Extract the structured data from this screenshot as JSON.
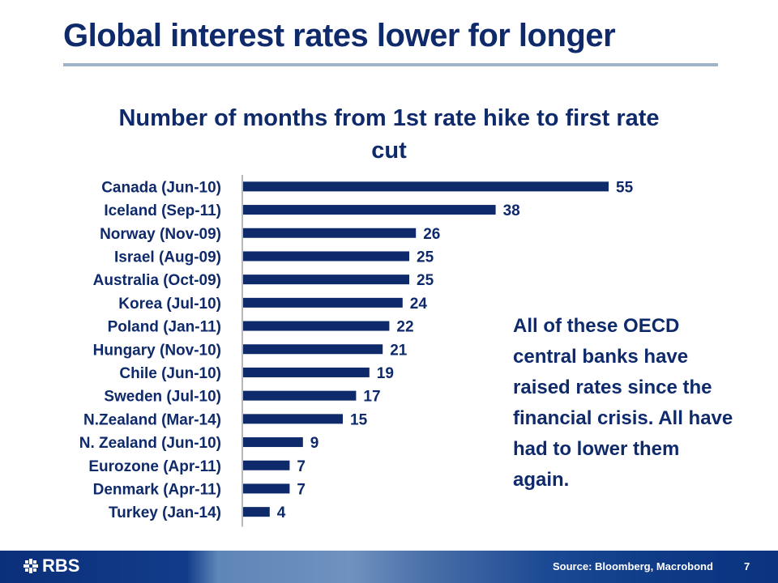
{
  "slide": {
    "title": "Global interest rates lower for longer",
    "annotation": "All of these OECD central banks have raised rates since the financial crisis. All have had to lower them again.",
    "footer": {
      "logo_text": "RBS",
      "source": "Source: Bloomberg, Macrobond",
      "page_number": "7"
    }
  },
  "colors": {
    "bar": "#0f2a6b",
    "text": "#0f2a6b",
    "rule": "#9fb3c8"
  },
  "chart_data": {
    "type": "bar",
    "orientation": "horizontal",
    "title": "Number of months from 1st rate hike to first rate cut",
    "xlabel": "",
    "ylabel": "",
    "xlim": [
      0,
      55
    ],
    "grid": false,
    "legend": "none",
    "categories": [
      "Canada (Jun-10)",
      "Iceland (Sep-11)",
      "Norway (Nov-09)",
      "Israel (Aug-09)",
      "Australia (Oct-09)",
      "Korea (Jul-10)",
      "Poland (Jan-11)",
      "Hungary (Nov-10)",
      "Chile (Jun-10)",
      "Sweden (Jul-10)",
      "N.Zealand (Mar-14)",
      "N. Zealand (Jun-10)",
      "Eurozone (Apr-11)",
      "Denmark (Apr-11)",
      "Turkey (Jan-14)"
    ],
    "values": [
      55,
      38,
      26,
      25,
      25,
      24,
      22,
      21,
      19,
      17,
      15,
      9,
      7,
      7,
      4
    ]
  }
}
